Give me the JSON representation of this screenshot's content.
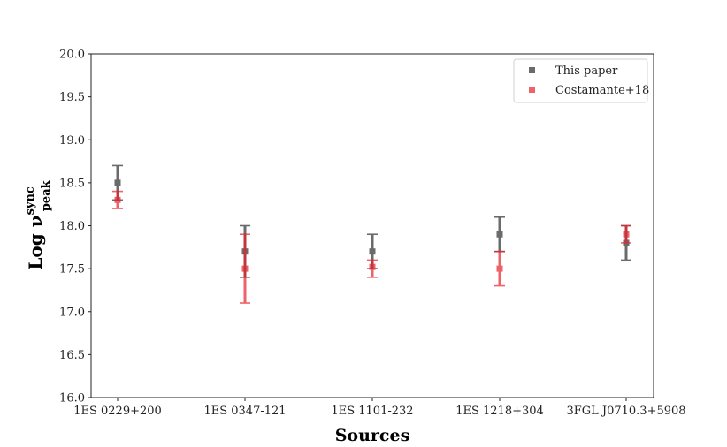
{
  "chart_data": {
    "type": "scatter",
    "categories": [
      "1ES 0229+200",
      "1ES 0347-121",
      "1ES 1101-232",
      "1ES 1218+304",
      "3FGL J0710.3+5908"
    ],
    "xlabel": "Sources",
    "ylabel": {
      "base": "Log ν",
      "sup": "sync",
      "sub": "peak"
    },
    "ylim": [
      16.0,
      20.0
    ],
    "yticks": [
      "16.0",
      "16.5",
      "17.0",
      "17.5",
      "18.0",
      "18.5",
      "19.0",
      "19.5",
      "20.0"
    ],
    "grid": false,
    "legend_position": "top-right",
    "series": [
      {
        "name": "This paper",
        "color": "#3a3a3a",
        "values": [
          18.5,
          17.7,
          17.7,
          17.9,
          17.8
        ],
        "err_low": [
          0.2,
          0.3,
          0.2,
          0.2,
          0.2
        ],
        "err_high": [
          0.2,
          0.3,
          0.2,
          0.2,
          0.2
        ]
      },
      {
        "name": "Costamante+18",
        "color": "#e8202a",
        "values": [
          18.3,
          17.5,
          17.52,
          17.5,
          17.9
        ],
        "err_low": [
          0.1,
          0.4,
          0.12,
          0.2,
          0.1
        ],
        "err_high": [
          0.1,
          0.4,
          0.08,
          0.2,
          0.1
        ]
      }
    ]
  }
}
